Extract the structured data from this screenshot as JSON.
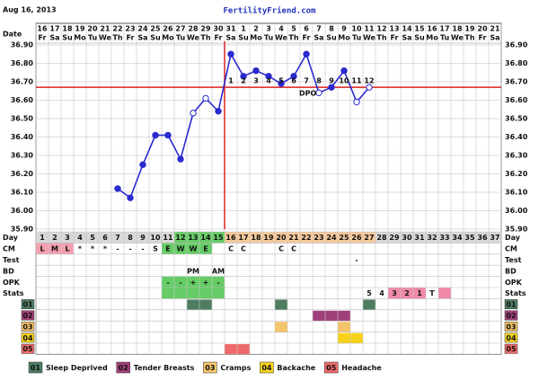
{
  "header": {
    "date": "Aug 16, 2013",
    "site": "FertilityFriend.com"
  },
  "chart_data": {
    "type": "line",
    "x": [
      1,
      2,
      3,
      4,
      5,
      6,
      7,
      8,
      9,
      10,
      11,
      12,
      13,
      14,
      15,
      16,
      17,
      18,
      19,
      20,
      21,
      22,
      23,
      24,
      25,
      26,
      27,
      28,
      29,
      30,
      31,
      32,
      33,
      34,
      35,
      36,
      37
    ],
    "dates": [
      16,
      17,
      18,
      19,
      20,
      21,
      22,
      23,
      24,
      25,
      26,
      27,
      28,
      29,
      30,
      31,
      1,
      2,
      3,
      4,
      5,
      6,
      7,
      8,
      9,
      10,
      11,
      12,
      13,
      14,
      15,
      16,
      17,
      18,
      19,
      20,
      21
    ],
    "weekdays": [
      "Fr",
      "Sa",
      "Su",
      "Mo",
      "Tu",
      "We",
      "Th",
      "Fr",
      "Sa",
      "Su",
      "Mo",
      "Tu",
      "We",
      "Th",
      "Fr",
      "Sa",
      "Su",
      "Mo",
      "Tu",
      "We",
      "Th",
      "Fr",
      "Sa",
      "Su",
      "Mo",
      "Tu",
      "We",
      "Th",
      "Fr",
      "Sa",
      "Su",
      "Mo",
      "Tu",
      "We",
      "Th",
      "Fr",
      "Sa"
    ],
    "values": [
      null,
      null,
      null,
      null,
      null,
      null,
      36.12,
      36.07,
      36.25,
      36.41,
      36.41,
      36.28,
      36.53,
      36.61,
      36.54,
      36.85,
      36.73,
      36.76,
      36.73,
      36.69,
      36.73,
      36.85,
      36.64,
      36.67,
      36.76,
      36.59,
      36.67,
      null,
      null,
      null,
      null,
      null,
      null,
      null,
      null,
      null,
      null
    ],
    "hollow_days": [
      13,
      14,
      23,
      26,
      27
    ],
    "color": "#2a2ad0",
    "ylim": [
      35.9,
      36.9
    ],
    "yticks": [
      {
        "value": 35.9,
        "label": "35.90"
      },
      {
        "value": 36.0,
        "label": "36.00"
      },
      {
        "value": 36.1,
        "label": "36.10"
      },
      {
        "value": 36.2,
        "label": "36.20"
      },
      {
        "value": 36.3,
        "label": "36.30"
      },
      {
        "value": 36.4,
        "label": "36.40"
      },
      {
        "value": 36.5,
        "label": "36.50"
      },
      {
        "value": 36.6,
        "label": "36.60"
      },
      {
        "value": 36.7,
        "label": "36.70"
      },
      {
        "value": 36.8,
        "label": "36.80"
      },
      {
        "value": 36.9,
        "label": "36.90"
      }
    ],
    "coverline": 36.67,
    "ovulation_day": 15,
    "dpo": [
      null,
      null,
      null,
      null,
      null,
      null,
      null,
      null,
      null,
      null,
      null,
      null,
      null,
      null,
      null,
      1,
      2,
      3,
      4,
      5,
      6,
      7,
      8,
      9,
      10,
      11,
      12,
      null,
      null,
      null,
      null,
      null,
      null,
      null,
      null,
      null,
      null
    ],
    "dpo_label": "DPO",
    "grid": true
  },
  "table": {
    "date_label": "Date",
    "row_labels": [
      "Day",
      "CM",
      "Test",
      "BD",
      "OPK",
      "Stats"
    ],
    "day_shading": [
      {
        "from": 12,
        "to": 15,
        "color": "#66cc66"
      },
      {
        "from": 16,
        "to": 27,
        "color": "#f5c99b"
      }
    ],
    "cm": [
      {
        "day": 1,
        "text": "L",
        "color": "#f4a0b0"
      },
      {
        "day": 2,
        "text": "M",
        "color": "#f4a0b0"
      },
      {
        "day": 3,
        "text": "L",
        "color": "#f4a0b0"
      },
      {
        "day": 4,
        "text": "*"
      },
      {
        "day": 5,
        "text": "*"
      },
      {
        "day": 6,
        "text": "*"
      },
      {
        "day": 7,
        "text": "-"
      },
      {
        "day": 8,
        "text": "-"
      },
      {
        "day": 9,
        "text": "-"
      },
      {
        "day": 10,
        "text": "S"
      },
      {
        "day": 11,
        "text": "E",
        "color": "#66cc66"
      },
      {
        "day": 12,
        "text": "W",
        "color": "#66cc66"
      },
      {
        "day": 13,
        "text": "W",
        "color": "#66cc66"
      },
      {
        "day": 14,
        "text": "E",
        "color": "#66cc66"
      },
      {
        "day": 16,
        "text": "C"
      },
      {
        "day": 17,
        "text": "C"
      },
      {
        "day": 20,
        "text": "C"
      },
      {
        "day": 21,
        "text": "C"
      }
    ],
    "test": [
      {
        "day": 26,
        "text": "-"
      }
    ],
    "bd": [
      {
        "day": 13,
        "text": "PM"
      },
      {
        "day": 15,
        "text": "AM"
      }
    ],
    "opk": [
      {
        "day": 11,
        "text": "-",
        "color": "#66cc66"
      },
      {
        "day": 12,
        "text": "-",
        "color": "#66cc66"
      },
      {
        "day": 13,
        "text": "+",
        "color": "#66cc66"
      },
      {
        "day": 14,
        "text": "+",
        "color": "#66cc66"
      },
      {
        "day": 15,
        "text": "-",
        "color": "#66cc66"
      }
    ],
    "stats": [
      {
        "day": 11,
        "color": "#66cc66"
      },
      {
        "day": 12,
        "color": "#66cc66"
      },
      {
        "day": 13,
        "color": "#66cc66"
      },
      {
        "day": 14,
        "color": "#66cc66"
      },
      {
        "day": 15,
        "color": "#66cc66"
      },
      {
        "day": 27,
        "text": "5"
      },
      {
        "day": 28,
        "text": "4"
      },
      {
        "day": 29,
        "text": "3",
        "color": "#f08aa8"
      },
      {
        "day": 30,
        "text": "2",
        "color": "#f08aa8"
      },
      {
        "day": 31,
        "text": "1",
        "color": "#f08aa8"
      },
      {
        "day": 32,
        "text": "T"
      },
      {
        "day": 33,
        "color": "#f08aa8"
      }
    ],
    "symptoms": [
      {
        "code": "01",
        "name": "Sleep Deprived",
        "color": "#4f7d62",
        "days": [
          13,
          14,
          20,
          27
        ]
      },
      {
        "code": "02",
        "name": "Tender Breasts",
        "color": "#a0407a",
        "days": [
          23,
          24,
          25
        ]
      },
      {
        "code": "03",
        "name": "Cramps",
        "color": "#f5c46a",
        "days": [
          20,
          25
        ]
      },
      {
        "code": "04",
        "name": "Backache",
        "color": "#f7d21a",
        "days": [
          25,
          26
        ]
      },
      {
        "code": "05",
        "name": "Headache",
        "color": "#ee6a6a",
        "days": [
          16,
          17
        ]
      }
    ]
  }
}
